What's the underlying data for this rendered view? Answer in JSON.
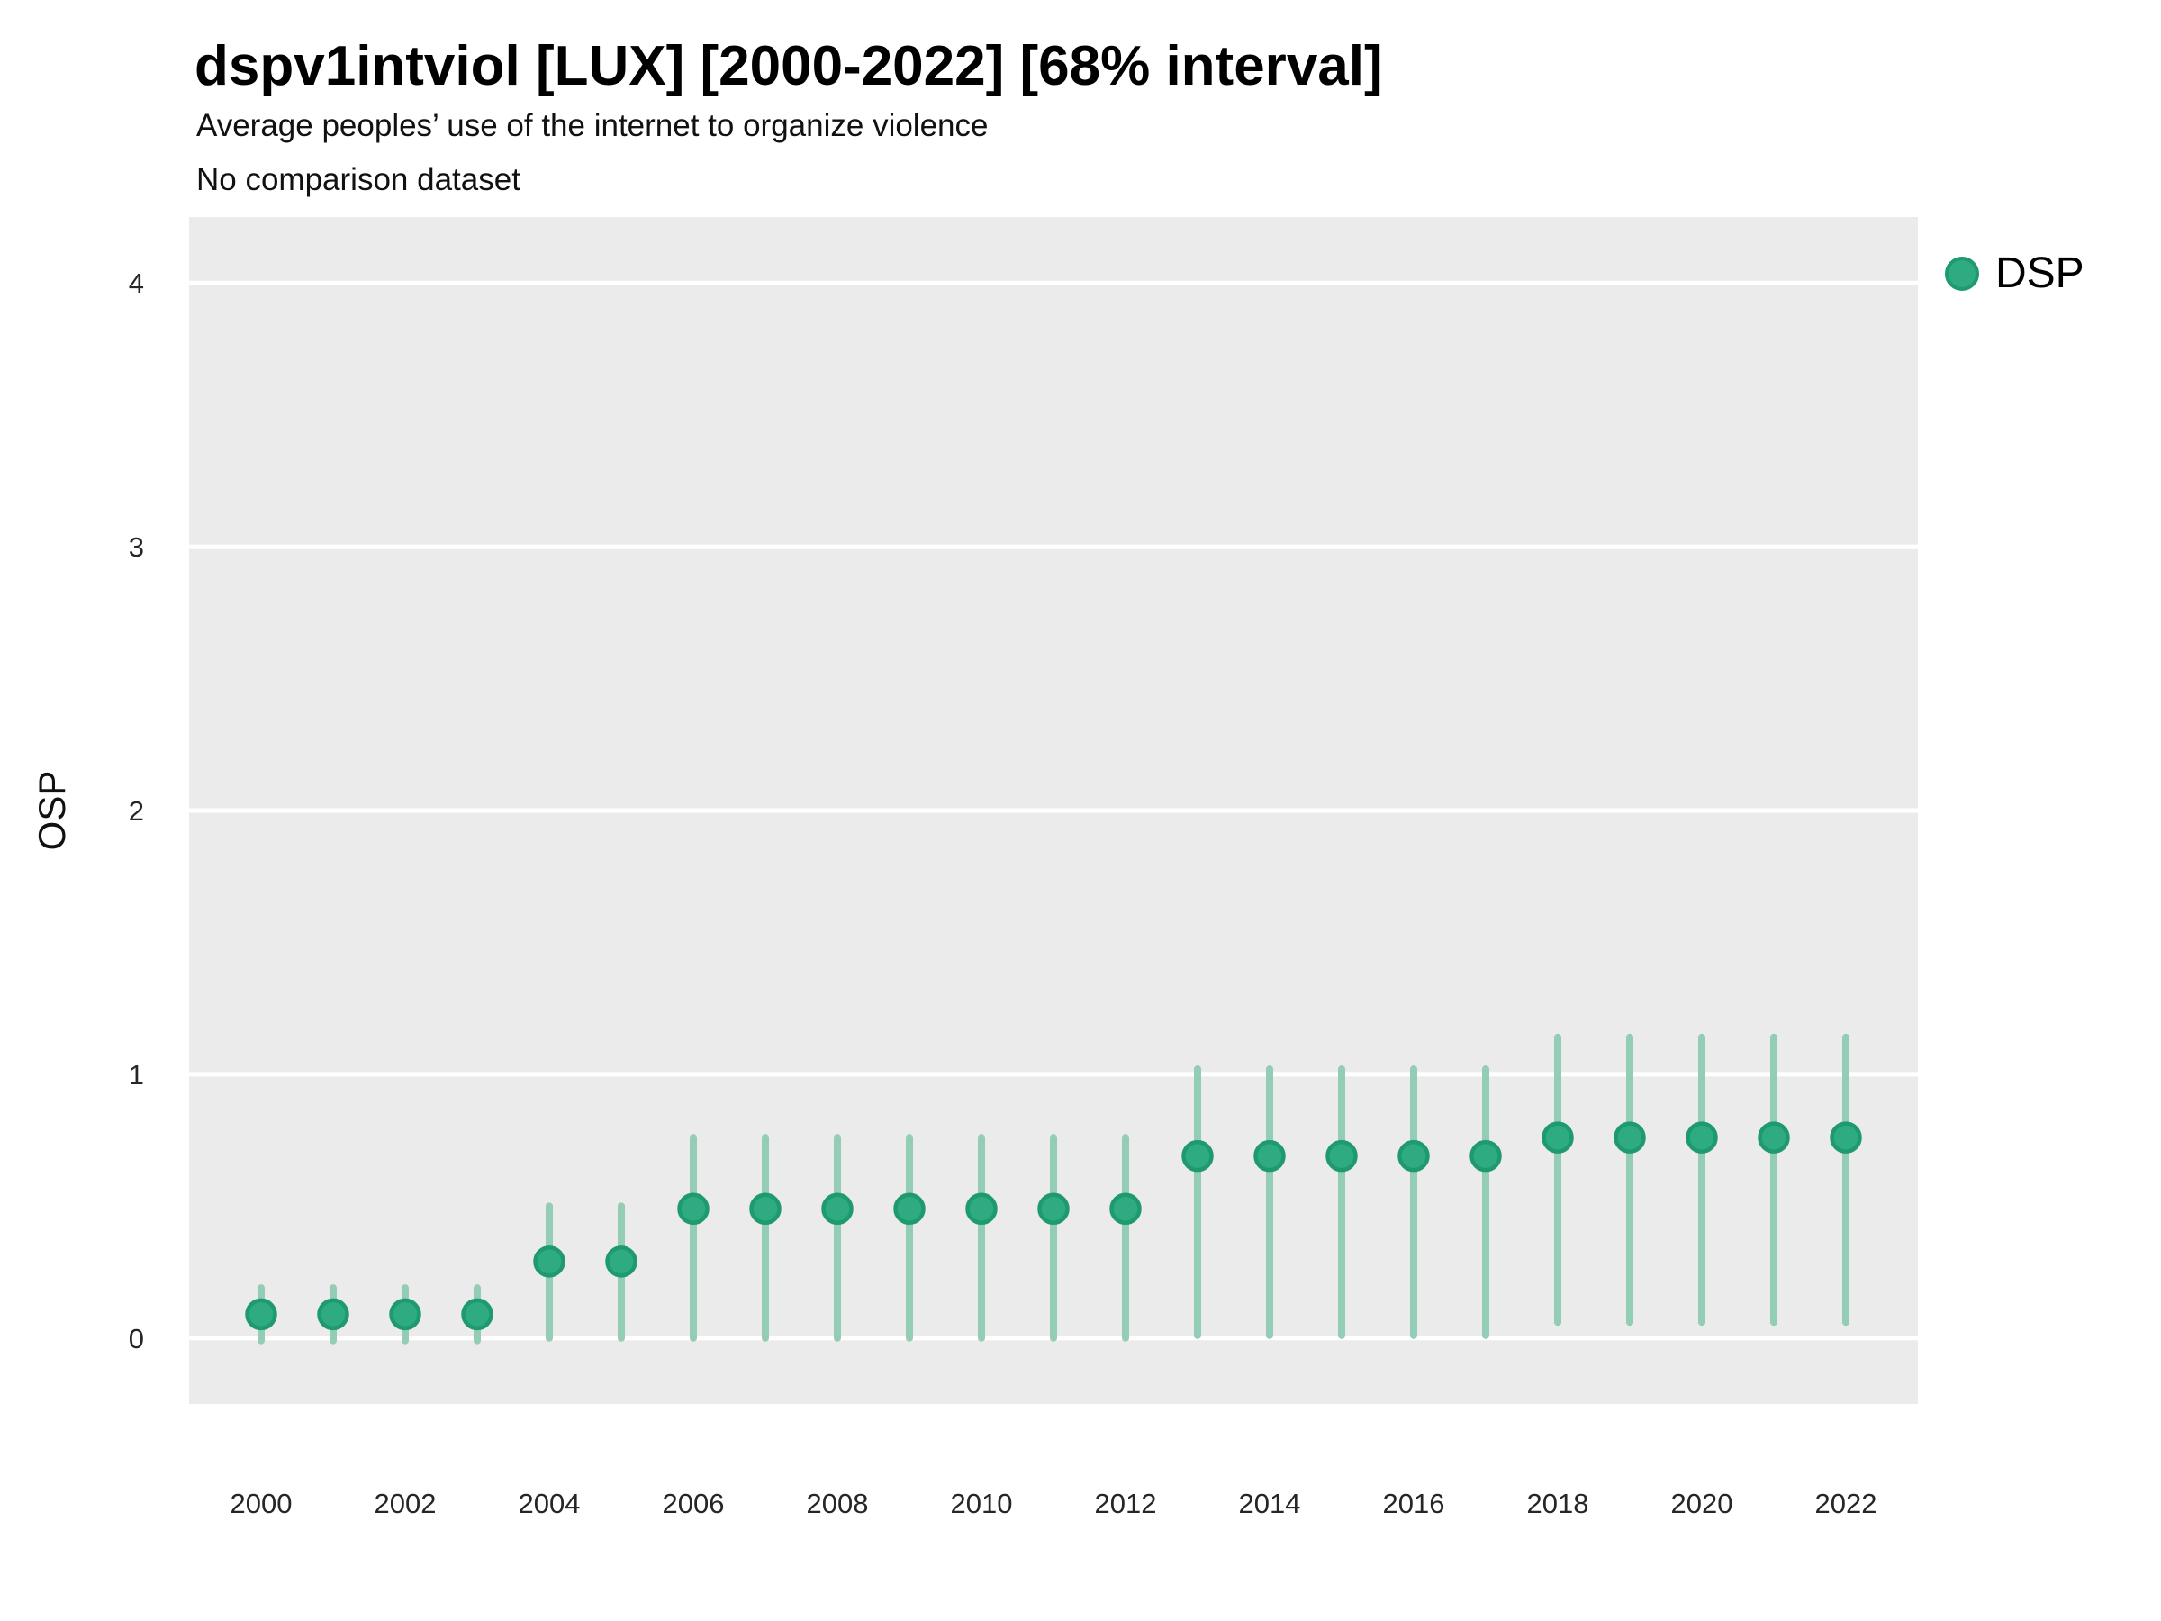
{
  "header": {
    "title": "dspv1intviol [LUX] [2000-2022] [68% interval]",
    "subtitle": "Average peoples’ use of the internet to organize violence",
    "note": "No comparison dataset"
  },
  "legend": {
    "position": "right",
    "items": [
      {
        "label": "DSP",
        "marker": "circle-icon",
        "fill": "#2EAB80",
        "stroke": "#1E9A6E"
      }
    ]
  },
  "colors": {
    "panel_bg": "#EBEBEB",
    "gridline": "#FFFFFF",
    "interval_bar": "#93CDB5",
    "point_fill": "#2EAB80",
    "point_stroke": "#1E9A6E",
    "tick_text": "#262626"
  },
  "chart_data": {
    "type": "scatter",
    "title": "dspv1intviol [LUX] [2000-2022] [68% interval]",
    "subtitle": "Average peoples’ use of the internet to organize violence",
    "note": "No comparison dataset",
    "xlabel": "",
    "ylabel": "OSP",
    "interval_level": "68%",
    "grid": "major-horizontal",
    "legend_position": "right",
    "x": [
      2000,
      2001,
      2002,
      2003,
      2004,
      2005,
      2006,
      2007,
      2008,
      2009,
      2010,
      2011,
      2012,
      2013,
      2014,
      2015,
      2016,
      2017,
      2018,
      2019,
      2020,
      2021,
      2022
    ],
    "series": [
      {
        "name": "DSP",
        "values": [
          0.09,
          0.09,
          0.09,
          0.09,
          0.29,
          0.29,
          0.49,
          0.49,
          0.49,
          0.49,
          0.49,
          0.49,
          0.49,
          0.69,
          0.69,
          0.69,
          0.69,
          0.69,
          0.76,
          0.76,
          0.76,
          0.76,
          0.76
        ],
        "interval_low": [
          -0.01,
          -0.01,
          -0.01,
          -0.01,
          0.0,
          0.0,
          0.0,
          0.0,
          0.0,
          0.0,
          0.0,
          0.0,
          0.0,
          0.01,
          0.01,
          0.01,
          0.01,
          0.01,
          0.06,
          0.06,
          0.06,
          0.06,
          0.06
        ],
        "interval_high": [
          0.19,
          0.19,
          0.19,
          0.19,
          0.5,
          0.5,
          0.76,
          0.76,
          0.76,
          0.76,
          0.76,
          0.76,
          0.76,
          1.02,
          1.02,
          1.02,
          1.02,
          1.02,
          1.14,
          1.14,
          1.14,
          1.14,
          1.14
        ]
      }
    ],
    "xticks": [
      2000,
      2002,
      2004,
      2006,
      2008,
      2010,
      2012,
      2014,
      2016,
      2018,
      2020,
      2022
    ],
    "yticks": [
      0,
      1,
      2,
      3,
      4
    ],
    "ylim": [
      -0.25,
      4.25
    ],
    "xlim": [
      1999,
      2023
    ]
  }
}
